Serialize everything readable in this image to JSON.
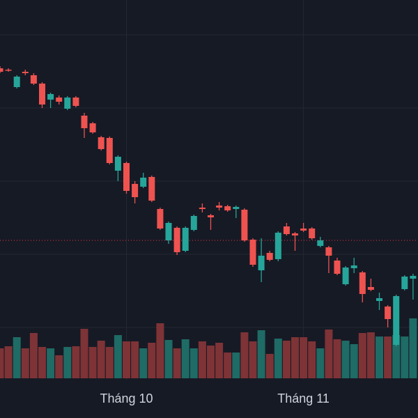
{
  "chart_data": {
    "type": "candlestick",
    "categories": [
      null,
      null,
      null,
      null,
      null,
      null,
      null,
      null,
      null,
      null,
      null,
      null,
      null,
      null,
      null,
      "Tháng 10",
      null,
      null,
      null,
      null,
      null,
      null,
      null,
      null,
      null,
      null,
      null,
      null,
      null,
      null,
      null,
      null,
      null,
      null,
      null,
      null,
      "Tháng 11",
      null,
      null,
      null,
      null,
      null,
      null,
      null,
      null,
      null,
      null,
      null,
      null,
      null
    ],
    "open": [
      502,
      500,
      475,
      497,
      492,
      480,
      457,
      460,
      444,
      460,
      434,
      423,
      403,
      402,
      355,
      366,
      336,
      332,
      346,
      300,
      255,
      273,
      240,
      270,
      302,
      291,
      305,
      304,
      300,
      299,
      256,
      212,
      237,
      228,
      275,
      265,
      272,
      272,
      247,
      245,
      226,
      192,
      215,
      209,
      188,
      168,
      160,
      105,
      185,
      200
    ],
    "high": [
      505,
      502,
      492,
      500,
      495,
      482,
      467,
      463,
      462,
      462,
      438,
      425,
      405,
      404,
      377,
      368,
      340,
      352,
      348,
      302,
      282,
      275,
      275,
      292,
      308,
      293,
      310,
      306,
      305,
      301,
      258,
      258,
      240,
      268,
      280,
      267,
      280,
      274,
      260,
      247,
      230,
      218,
      230,
      211,
      200,
      180,
      162,
      177,
      205,
      207
    ],
    "low": [
      495,
      497,
      473,
      492,
      478,
      445,
      445,
      450,
      442,
      446,
      402,
      408,
      384,
      364,
      340,
      322,
      308,
      330,
      310,
      270,
      250,
      234,
      238,
      268,
      295,
      270,
      298,
      296,
      287,
      253,
      217,
      195,
      225,
      225,
      262,
      240,
      267,
      256,
      245,
      208,
      205,
      190,
      208,
      166,
      182,
      155,
      130,
      103,
      183,
      170
    ],
    "close": [
      497,
      499,
      490,
      495,
      480,
      450,
      465,
      454,
      460,
      448,
      416,
      410,
      386,
      366,
      375,
      326,
      317,
      345,
      312,
      272,
      280,
      238,
      273,
      290,
      300,
      288,
      302,
      298,
      303,
      255,
      220,
      233,
      227,
      266,
      264,
      262,
      269,
      258,
      255,
      233,
      207,
      216,
      219,
      178,
      184,
      172,
      142,
      175,
      203,
      204
    ],
    "volume": [
      43,
      46,
      59,
      43,
      65,
      45,
      43,
      33,
      45,
      46,
      71,
      45,
      54,
      45,
      62,
      53,
      53,
      43,
      51,
      79,
      55,
      43,
      56,
      43,
      53,
      47,
      51,
      37,
      37,
      66,
      53,
      69,
      35,
      57,
      54,
      59,
      59,
      53,
      43,
      70,
      56,
      54,
      49,
      65,
      66,
      60,
      60,
      62,
      60,
      86
    ],
    "ylim": [
      0,
      600
    ],
    "yticks": [
      130,
      235,
      340,
      445,
      550
    ],
    "volume_lim": [
      0,
      100
    ],
    "price_line": 255,
    "price_line_color": "#f23645",
    "up_color": "#26a69a",
    "down_color": "#ef5350",
    "volume_up_color": "#1f6b65",
    "volume_down_color": "#7e3336",
    "grid": true
  }
}
